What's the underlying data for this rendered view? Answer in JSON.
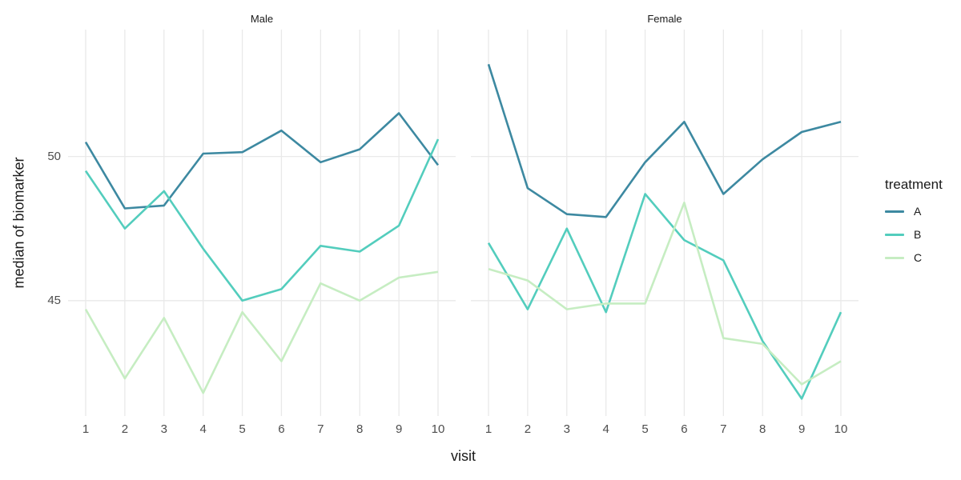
{
  "chart_data": {
    "type": "line",
    "x": [
      1,
      2,
      3,
      4,
      5,
      6,
      7,
      8,
      9,
      10
    ],
    "xticks": [
      1,
      2,
      3,
      4,
      5,
      6,
      7,
      8,
      9,
      10
    ],
    "yticks": [
      45,
      50
    ],
    "xlim": [
      0.55,
      10.45
    ],
    "ylim": [
      41.0,
      54.4
    ],
    "xlabel": "visit",
    "ylabel": "median of biomarker",
    "grid": "major-only",
    "facets": [
      {
        "label": "Male",
        "series": [
          {
            "name": "A",
            "values": [
              50.5,
              48.2,
              48.3,
              50.1,
              50.15,
              50.9,
              49.8,
              50.25,
              51.5,
              49.7
            ]
          },
          {
            "name": "B",
            "values": [
              49.5,
              47.5,
              48.8,
              46.8,
              45.0,
              45.4,
              46.9,
              46.7,
              47.6,
              50.6
            ]
          },
          {
            "name": "C",
            "values": [
              44.7,
              42.3,
              44.4,
              41.8,
              44.6,
              42.9,
              45.6,
              45.0,
              45.8,
              46.0
            ]
          }
        ]
      },
      {
        "label": "Female",
        "series": [
          {
            "name": "A",
            "values": [
              53.2,
              48.9,
              48.0,
              47.9,
              49.8,
              51.2,
              48.7,
              49.9,
              50.85,
              51.2
            ]
          },
          {
            "name": "B",
            "values": [
              47.0,
              44.7,
              47.5,
              44.6,
              48.7,
              47.1,
              46.4,
              43.6,
              41.6,
              44.6
            ]
          },
          {
            "name": "C",
            "values": [
              46.1,
              45.7,
              44.7,
              44.9,
              44.9,
              48.4,
              43.7,
              43.5,
              42.1,
              42.9
            ]
          }
        ]
      }
    ],
    "legend": {
      "title": "treatment",
      "position": "right",
      "entries": [
        {
          "label": "A",
          "color": "#3d89a1"
        },
        {
          "label": "B",
          "color": "#53cdbd"
        },
        {
          "label": "C",
          "color": "#c6edc2"
        }
      ]
    },
    "colors": {
      "background": "#ffffff",
      "gridline": "#e9e9e9",
      "axis_text": "#4d4d4d",
      "title_text": "#1a1a1a"
    }
  }
}
